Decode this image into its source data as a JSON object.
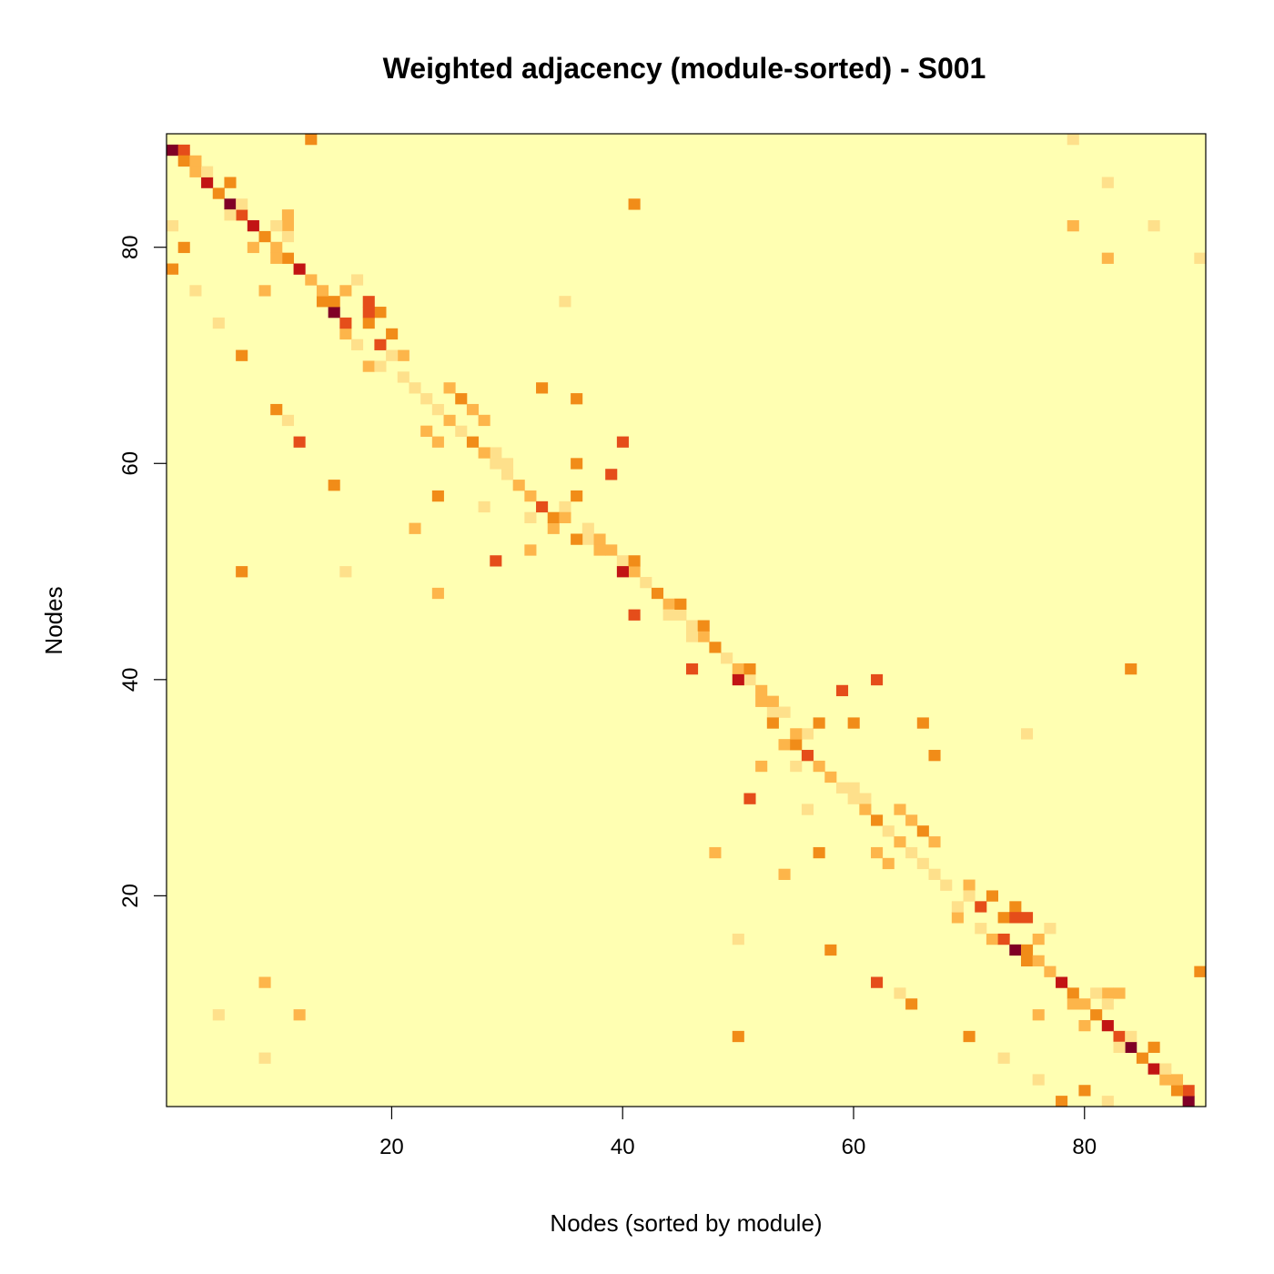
{
  "chart_data": {
    "type": "heatmap",
    "title": "Weighted adjacency (module-sorted) - S001",
    "xlabel": "Nodes (sorted by module)",
    "ylabel": "Nodes",
    "n_nodes": 90,
    "xlim": [
      0.5,
      90.5
    ],
    "ylim": [
      0.5,
      90.5
    ],
    "x_ticks": [
      20,
      40,
      60,
      80
    ],
    "y_ticks": [
      20,
      40,
      60,
      80
    ],
    "x_tick_labels": [
      "20",
      "40",
      "60",
      "80"
    ],
    "y_tick_labels": [
      "20",
      "40",
      "60",
      "80"
    ],
    "colormap": [
      "#FFFFB2",
      "#FEE08B",
      "#FDB54A",
      "#F18C18",
      "#E54D1A",
      "#C21414",
      "#800026"
    ],
    "background_value": 0,
    "value_scale": "0 (no connection) to 6 (strongest weight)",
    "cells": [
      [
        1,
        89,
        6
      ],
      [
        89,
        1,
        6
      ],
      [
        2,
        89,
        4
      ],
      [
        89,
        2,
        4
      ],
      [
        2,
        88,
        3
      ],
      [
        88,
        2,
        3
      ],
      [
        3,
        87,
        2
      ],
      [
        87,
        3,
        2
      ],
      [
        4,
        86,
        5
      ],
      [
        86,
        4,
        5
      ],
      [
        5,
        85,
        3
      ],
      [
        85,
        5,
        3
      ],
      [
        6,
        84,
        6
      ],
      [
        84,
        6,
        6
      ],
      [
        7,
        83,
        4
      ],
      [
        83,
        7,
        4
      ],
      [
        8,
        82,
        5
      ],
      [
        82,
        8,
        5
      ],
      [
        9,
        81,
        3
      ],
      [
        81,
        9,
        3
      ],
      [
        10,
        80,
        2
      ],
      [
        80,
        10,
        2
      ],
      [
        11,
        79,
        3
      ],
      [
        79,
        11,
        3
      ],
      [
        12,
        78,
        5
      ],
      [
        78,
        12,
        5
      ],
      [
        13,
        77,
        2
      ],
      [
        77,
        13,
        2
      ],
      [
        14,
        75,
        3
      ],
      [
        75,
        14,
        3
      ],
      [
        15,
        74,
        6
      ],
      [
        74,
        15,
        6
      ],
      [
        16,
        72,
        2
      ],
      [
        72,
        16,
        2
      ],
      [
        17,
        71,
        1
      ],
      [
        71,
        17,
        1
      ],
      [
        18,
        69,
        2
      ],
      [
        69,
        18,
        2
      ],
      [
        1,
        82,
        1
      ],
      [
        82,
        1,
        1
      ],
      [
        2,
        80,
        3
      ],
      [
        80,
        2,
        3
      ],
      [
        3,
        76,
        1
      ],
      [
        76,
        3,
        1
      ],
      [
        5,
        73,
        1
      ],
      [
        73,
        5,
        1
      ],
      [
        7,
        70,
        3
      ],
      [
        70,
        7,
        3
      ],
      [
        9,
        76,
        2
      ],
      [
        76,
        9,
        2
      ],
      [
        10,
        65,
        3
      ],
      [
        65,
        10,
        3
      ],
      [
        11,
        64,
        1
      ],
      [
        64,
        11,
        1
      ],
      [
        12,
        62,
        4
      ],
      [
        62,
        12,
        4
      ],
      [
        15,
        58,
        3
      ],
      [
        58,
        15,
        3
      ],
      [
        19,
        71,
        4
      ],
      [
        71,
        19,
        4
      ],
      [
        20,
        72,
        3
      ],
      [
        72,
        20,
        3
      ],
      [
        21,
        70,
        2
      ],
      [
        70,
        21,
        2
      ],
      [
        23,
        63,
        2
      ],
      [
        63,
        23,
        2
      ],
      [
        24,
        62,
        2
      ],
      [
        62,
        24,
        2
      ],
      [
        24,
        57,
        3
      ],
      [
        57,
        24,
        3
      ],
      [
        25,
        67,
        2
      ],
      [
        67,
        25,
        2
      ],
      [
        26,
        66,
        3
      ],
      [
        66,
        26,
        3
      ],
      [
        27,
        65,
        2
      ],
      [
        65,
        27,
        2
      ],
      [
        28,
        64,
        2
      ],
      [
        64,
        28,
        2
      ],
      [
        29,
        61,
        1
      ],
      [
        61,
        29,
        1
      ],
      [
        30,
        60,
        1
      ],
      [
        60,
        30,
        1
      ],
      [
        24,
        48,
        2
      ],
      [
        48,
        24,
        2
      ],
      [
        31,
        58,
        2
      ],
      [
        58,
        31,
        2
      ],
      [
        32,
        55,
        1
      ],
      [
        55,
        32,
        1
      ],
      [
        33,
        67,
        3
      ],
      [
        67,
        33,
        3
      ],
      [
        34,
        54,
        2
      ],
      [
        54,
        34,
        2
      ],
      [
        35,
        56,
        1
      ],
      [
        56,
        35,
        1
      ],
      [
        36,
        66,
        3
      ],
      [
        66,
        36,
        3
      ],
      [
        37,
        53,
        1
      ],
      [
        53,
        37,
        1
      ],
      [
        38,
        52,
        2
      ],
      [
        52,
        38,
        2
      ],
      [
        39,
        59,
        4
      ],
      [
        59,
        39,
        4
      ],
      [
        40,
        51,
        1
      ],
      [
        51,
        40,
        1
      ],
      [
        41,
        50,
        2
      ],
      [
        50,
        41,
        2
      ],
      [
        42,
        49,
        1
      ],
      [
        49,
        42,
        1
      ],
      [
        43,
        48,
        3
      ],
      [
        48,
        43,
        3
      ],
      [
        44,
        47,
        2
      ],
      [
        47,
        44,
        2
      ],
      [
        45,
        46,
        1
      ],
      [
        46,
        45,
        1
      ],
      [
        46,
        44,
        1
      ],
      [
        44,
        46,
        1
      ],
      [
        32,
        52,
        2
      ],
      [
        52,
        32,
        2
      ],
      [
        36,
        60,
        3
      ],
      [
        60,
        36,
        3
      ],
      [
        22,
        54,
        2
      ],
      [
        54,
        22,
        2
      ],
      [
        28,
        56,
        1
      ],
      [
        56,
        28,
        1
      ],
      [
        47,
        45,
        3
      ],
      [
        45,
        47,
        3
      ],
      [
        48,
        43,
        5
      ],
      [
        43,
        48,
        5
      ],
      [
        49,
        42,
        2
      ],
      [
        42,
        49,
        2
      ],
      [
        50,
        40,
        5
      ],
      [
        40,
        50,
        5
      ],
      [
        51,
        41,
        3
      ],
      [
        41,
        51,
        3
      ],
      [
        52,
        39,
        2
      ],
      [
        39,
        52,
        2
      ],
      [
        53,
        38,
        2
      ],
      [
        38,
        53,
        2
      ],
      [
        54,
        37,
        1
      ],
      [
        37,
        54,
        1
      ],
      [
        55,
        34,
        3
      ],
      [
        34,
        55,
        3
      ],
      [
        56,
        33,
        4
      ],
      [
        33,
        56,
        4
      ],
      [
        57,
        32,
        2
      ],
      [
        32,
        57,
        2
      ],
      [
        58,
        31,
        1
      ],
      [
        31,
        58,
        1
      ],
      [
        59,
        30,
        1
      ],
      [
        30,
        59,
        1
      ],
      [
        60,
        29,
        1
      ],
      [
        29,
        60,
        1
      ],
      [
        61,
        28,
        2
      ],
      [
        28,
        61,
        2
      ],
      [
        62,
        27,
        3
      ],
      [
        27,
        62,
        3
      ],
      [
        63,
        26,
        1
      ],
      [
        26,
        63,
        1
      ],
      [
        64,
        25,
        2
      ],
      [
        25,
        64,
        2
      ],
      [
        65,
        24,
        1
      ],
      [
        24,
        65,
        1
      ],
      [
        66,
        23,
        1
      ],
      [
        23,
        66,
        1
      ],
      [
        46,
        41,
        4
      ],
      [
        41,
        46,
        4
      ],
      [
        53,
        36,
        3
      ],
      [
        36,
        53,
        3
      ],
      [
        55,
        35,
        2
      ],
      [
        35,
        55,
        2
      ],
      [
        57,
        36,
        3
      ],
      [
        36,
        57,
        3
      ],
      [
        51,
        29,
        4
      ],
      [
        29,
        51,
        4
      ],
      [
        62,
        40,
        4
      ],
      [
        40,
        62,
        4
      ],
      [
        64,
        28,
        4
      ],
      [
        28,
        64,
        4
      ],
      [
        50,
        16,
        1
      ],
      [
        16,
        50,
        1
      ],
      [
        84,
        41,
        3
      ],
      [
        41,
        84,
        3
      ],
      [
        75,
        35,
        1
      ],
      [
        35,
        75,
        1
      ],
      [
        67,
        22,
        1
      ],
      [
        22,
        67,
        1
      ],
      [
        68,
        21,
        1
      ],
      [
        21,
        68,
        1
      ],
      [
        69,
        19,
        1
      ],
      [
        19,
        69,
        1
      ],
      [
        70,
        20,
        1
      ],
      [
        20,
        70,
        1
      ],
      [
        71,
        17,
        2
      ],
      [
        17,
        71,
        2
      ],
      [
        72,
        16,
        2
      ],
      [
        16,
        72,
        2
      ],
      [
        73,
        18,
        3
      ],
      [
        18,
        73,
        3
      ],
      [
        74,
        19,
        3
      ],
      [
        19,
        74,
        3
      ],
      [
        75,
        15,
        3
      ],
      [
        15,
        75,
        3
      ],
      [
        76,
        14,
        2
      ],
      [
        14,
        76,
        2
      ],
      [
        77,
        13,
        1
      ],
      [
        13,
        77,
        1
      ],
      [
        78,
        12,
        1
      ],
      [
        12,
        78,
        1
      ],
      [
        79,
        10,
        2
      ],
      [
        10,
        79,
        2
      ],
      [
        80,
        8,
        2
      ],
      [
        8,
        80,
        2
      ],
      [
        81,
        9,
        2
      ],
      [
        9,
        81,
        2
      ],
      [
        82,
        11,
        2
      ],
      [
        11,
        82,
        2
      ],
      [
        83,
        6,
        1
      ],
      [
        6,
        83,
        1
      ],
      [
        84,
        7,
        1
      ],
      [
        7,
        84,
        1
      ],
      [
        85,
        5,
        3
      ],
      [
        5,
        85,
        3
      ],
      [
        86,
        6,
        3
      ],
      [
        6,
        86,
        3
      ],
      [
        87,
        4,
        1
      ],
      [
        4,
        87,
        1
      ],
      [
        88,
        3,
        2
      ],
      [
        3,
        88,
        2
      ],
      [
        89,
        2,
        1
      ],
      [
        2,
        89,
        1
      ],
      [
        90,
        13,
        3
      ],
      [
        13,
        90,
        3
      ],
      [
        72,
        16,
        4
      ],
      [
        16,
        72,
        4
      ],
      [
        74,
        18,
        4
      ],
      [
        18,
        74,
        4
      ],
      [
        73,
        16,
        4
      ],
      [
        16,
        73,
        4
      ],
      [
        76,
        16,
        2
      ],
      [
        16,
        76,
        2
      ],
      [
        75,
        18,
        4
      ],
      [
        18,
        75,
        4
      ],
      [
        77,
        17,
        1
      ],
      [
        17,
        77,
        1
      ],
      [
        79,
        90,
        1
      ],
      [
        90,
        79,
        1
      ],
      [
        79,
        82,
        2
      ],
      [
        82,
        79,
        2
      ],
      [
        86,
        82,
        1
      ],
      [
        82,
        86,
        1
      ],
      [
        9,
        12,
        2
      ],
      [
        12,
        9,
        2
      ],
      [
        9,
        5,
        1
      ],
      [
        5,
        9,
        1
      ],
      [
        50,
        7,
        3
      ],
      [
        7,
        50,
        3
      ],
      [
        78,
        1,
        3
      ],
      [
        1,
        78,
        3
      ],
      [
        82,
        10,
        1
      ],
      [
        10,
        82,
        1
      ],
      [
        81,
        11,
        1
      ],
      [
        11,
        81,
        1
      ],
      [
        83,
        11,
        2
      ],
      [
        11,
        83,
        2
      ]
    ]
  }
}
